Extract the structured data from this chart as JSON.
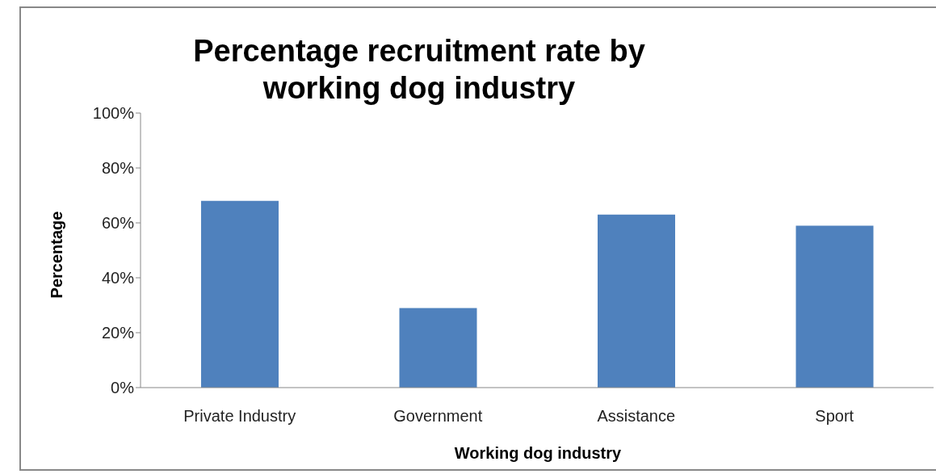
{
  "chart_data": {
    "type": "bar",
    "title": "Percentage recruitment rate by working dog industry",
    "xlabel": "Working dog industry",
    "ylabel": "Percentage",
    "categories": [
      "Private Industry",
      "Government",
      "Assistance",
      "Sport"
    ],
    "values": [
      68,
      29,
      63,
      59
    ],
    "color": "#4f81bd",
    "ylim": [
      0,
      100
    ],
    "yticks": [
      {
        "value": 0,
        "label": "0%"
      },
      {
        "value": 20,
        "label": "20%"
      },
      {
        "value": 40,
        "label": "40%"
      },
      {
        "value": 60,
        "label": "60%"
      },
      {
        "value": 80,
        "label": "80%"
      },
      {
        "value": 100,
        "label": "100%"
      }
    ],
    "grid": false,
    "legend": false
  }
}
